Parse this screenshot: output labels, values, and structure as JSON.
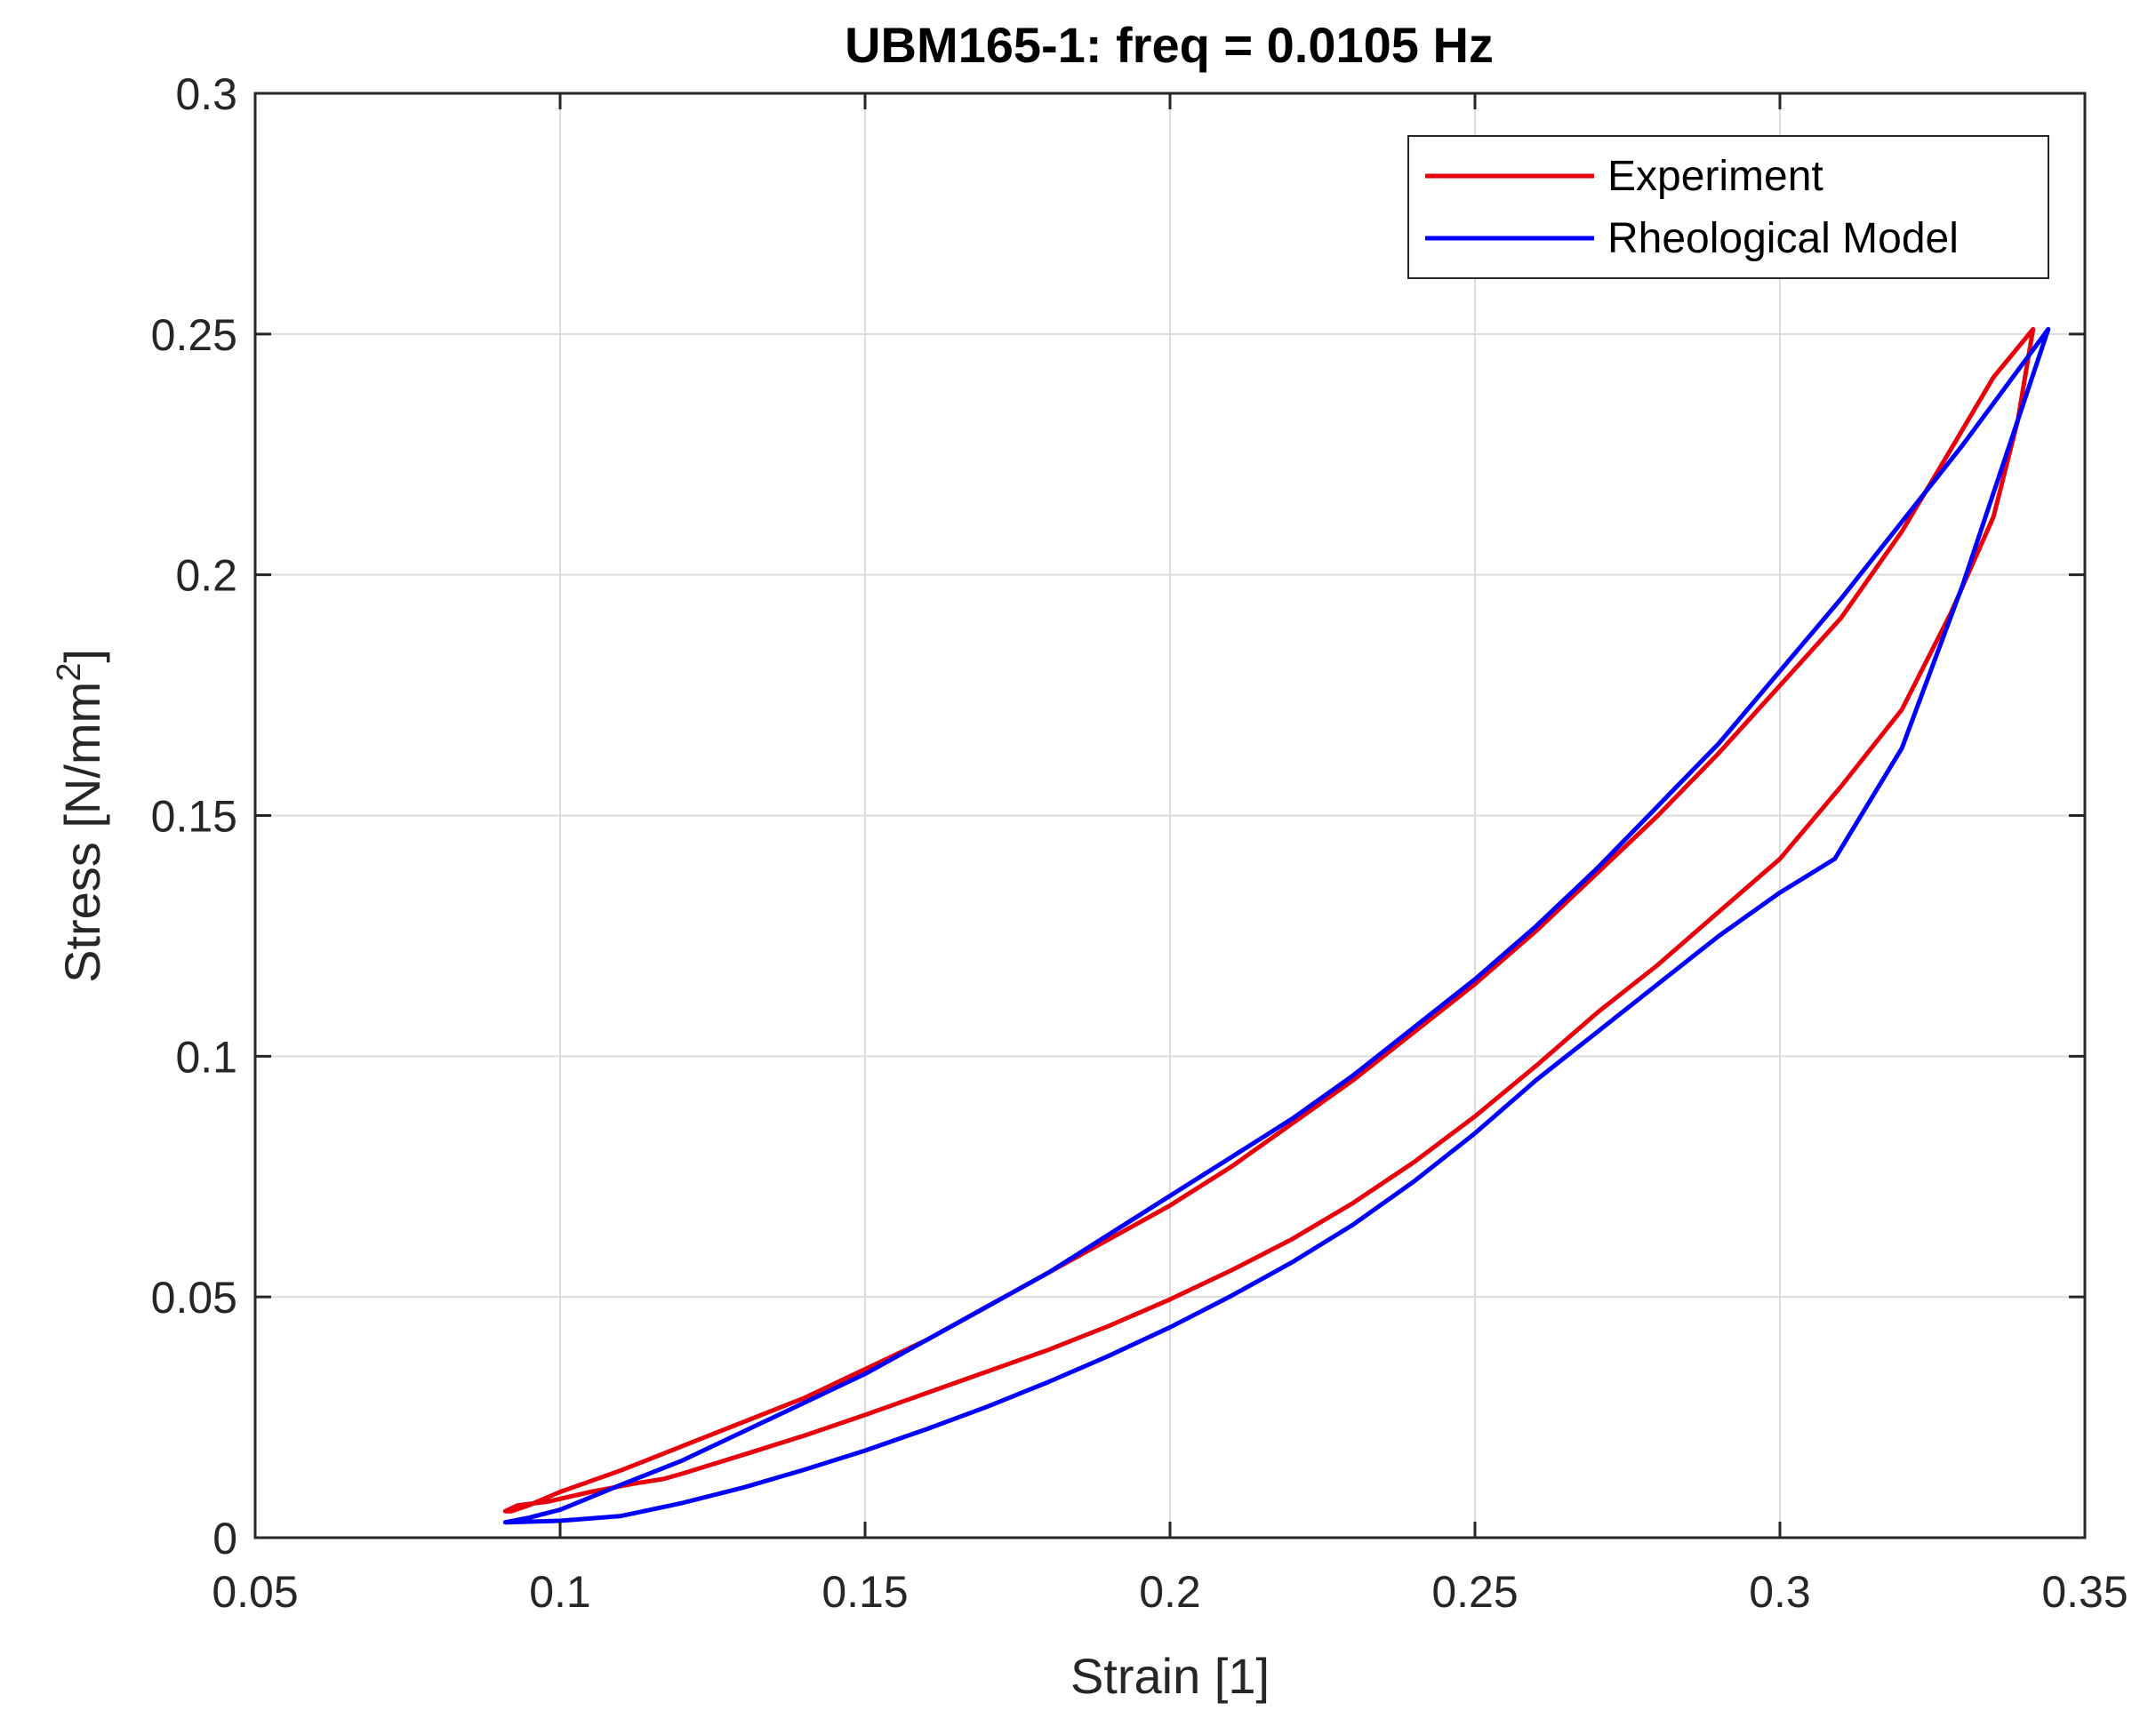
{
  "chart_data": {
    "type": "line",
    "title": "UBM165-1: freq = 0.0105 Hz",
    "xlabel": "Strain [1]",
    "ylabel_main": "Stress [N/mm",
    "ylabel_sup": "2",
    "ylabel_end": "]",
    "xlim": [
      0.05,
      0.35
    ],
    "ylim": [
      0,
      0.3
    ],
    "xticks": [
      0.05,
      0.1,
      0.15,
      0.2,
      0.25,
      0.3,
      0.35
    ],
    "xtick_labels": [
      "0.05",
      "0.1",
      "0.15",
      "0.2",
      "0.25",
      "0.3",
      "0.35"
    ],
    "yticks": [
      0,
      0.05,
      0.1,
      0.15,
      0.2,
      0.25,
      0.3
    ],
    "ytick_labels": [
      "0",
      "0.05",
      "0.1",
      "0.15",
      "0.2",
      "0.25",
      "0.3"
    ],
    "grid": true,
    "legend_position": "top-right",
    "series": [
      {
        "name": "Experiment",
        "color": "#e8000b",
        "x": [
          0.3415,
          0.335,
          0.328,
          0.32,
          0.31,
          0.3,
          0.29,
          0.28,
          0.27,
          0.26,
          0.25,
          0.24,
          0.23,
          0.22,
          0.21,
          0.2,
          0.19,
          0.18,
          0.17,
          0.16,
          0.15,
          0.14,
          0.13,
          0.12,
          0.11,
          0.1,
          0.095,
          0.092,
          0.091,
          0.093,
          0.098,
          0.105,
          0.112,
          0.117,
          0.12,
          0.13,
          0.14,
          0.15,
          0.16,
          0.17,
          0.18,
          0.19,
          0.2,
          0.21,
          0.22,
          0.23,
          0.24,
          0.25,
          0.26,
          0.27,
          0.28,
          0.29,
          0.3,
          0.31,
          0.32,
          0.328,
          0.335,
          0.339,
          0.3415
        ],
        "y": [
          0.251,
          0.241,
          0.226,
          0.209,
          0.191,
          0.177,
          0.163,
          0.15,
          0.138,
          0.126,
          0.115,
          0.105,
          0.095,
          0.086,
          0.077,
          0.069,
          0.062,
          0.055,
          0.048,
          0.041,
          0.035,
          0.029,
          0.024,
          0.019,
          0.014,
          0.0095,
          0.0068,
          0.0055,
          0.0055,
          0.0067,
          0.0075,
          0.0095,
          0.0112,
          0.0122,
          0.0133,
          0.0172,
          0.0212,
          0.0255,
          0.03,
          0.0345,
          0.039,
          0.044,
          0.0495,
          0.0555,
          0.062,
          0.0695,
          0.078,
          0.0875,
          0.098,
          0.109,
          0.119,
          0.13,
          0.141,
          0.156,
          0.172,
          0.192,
          0.212,
          0.232,
          0.251
        ]
      },
      {
        "name": "Rheological Model",
        "color": "#0000ff",
        "x": [
          0.344,
          0.33,
          0.32,
          0.31,
          0.3,
          0.29,
          0.28,
          0.27,
          0.26,
          0.25,
          0.24,
          0.23,
          0.22,
          0.21,
          0.2,
          0.19,
          0.18,
          0.17,
          0.16,
          0.15,
          0.14,
          0.13,
          0.12,
          0.11,
          0.1,
          0.095,
          0.091,
          0.1,
          0.11,
          0.12,
          0.13,
          0.14,
          0.15,
          0.16,
          0.17,
          0.18,
          0.19,
          0.2,
          0.21,
          0.22,
          0.23,
          0.24,
          0.25,
          0.26,
          0.27,
          0.28,
          0.29,
          0.3,
          0.309,
          0.32,
          0.33,
          0.344
        ],
        "y": [
          0.251,
          0.227,
          0.211,
          0.195,
          0.18,
          0.165,
          0.152,
          0.139,
          0.127,
          0.116,
          0.106,
          0.096,
          0.087,
          0.079,
          0.071,
          0.063,
          0.055,
          0.048,
          0.041,
          0.034,
          0.028,
          0.022,
          0.016,
          0.011,
          0.0058,
          0.0042,
          0.0032,
          0.0035,
          0.0045,
          0.0072,
          0.0104,
          0.0141,
          0.0181,
          0.0225,
          0.0272,
          0.0323,
          0.0378,
          0.0437,
          0.0502,
          0.0572,
          0.065,
          0.074,
          0.084,
          0.095,
          0.105,
          0.115,
          0.125,
          0.134,
          0.141,
          0.164,
          0.198,
          0.251
        ]
      }
    ]
  }
}
